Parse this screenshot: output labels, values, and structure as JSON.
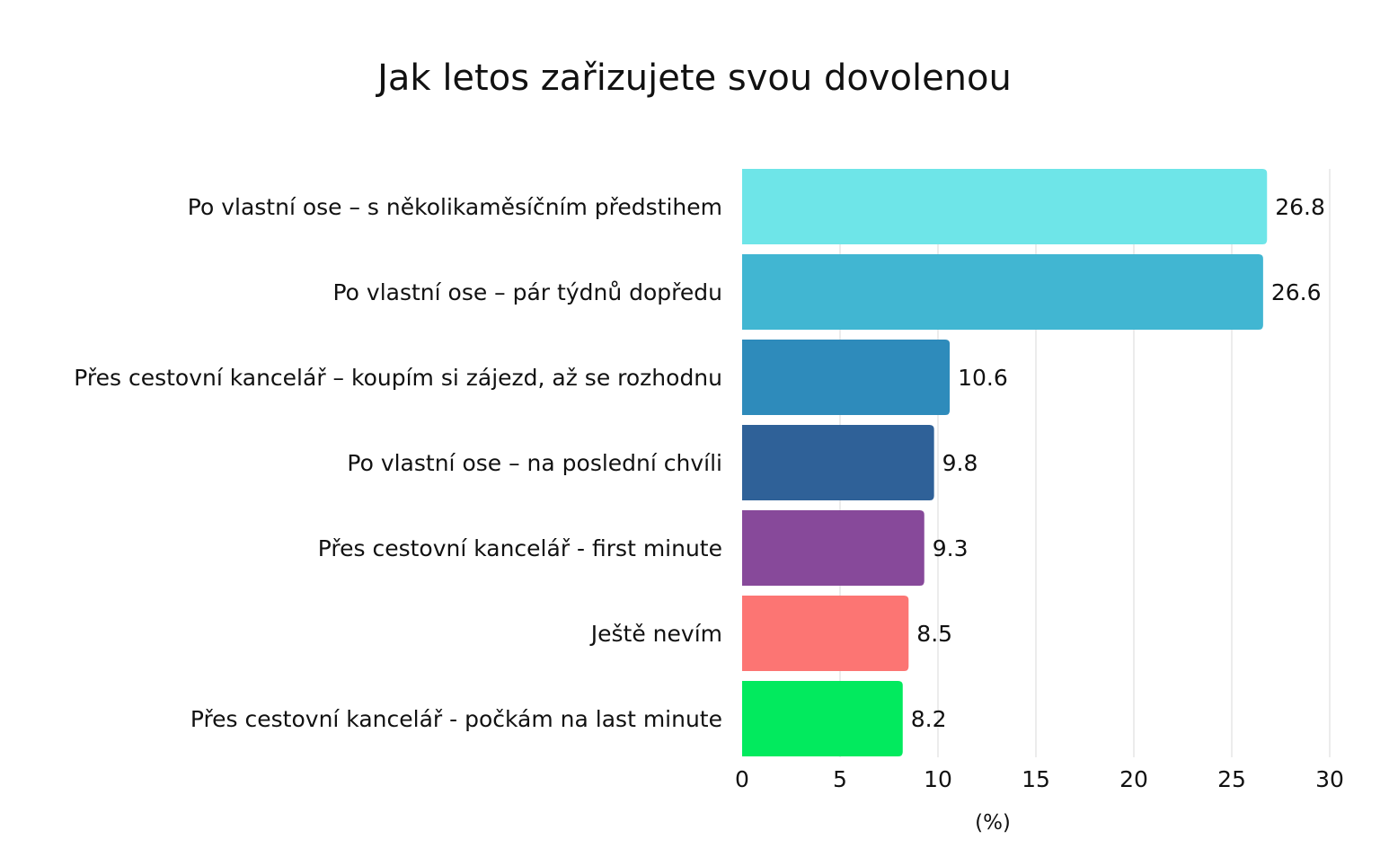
{
  "chart_data": {
    "type": "bar",
    "orientation": "horizontal",
    "title": "Jak letos zařizujete svou dovolenou",
    "xlabel": "(%)",
    "ylabel": "",
    "xlim": [
      0,
      30
    ],
    "xticks": [
      0,
      5,
      10,
      15,
      20,
      25,
      30
    ],
    "grid": "vertical",
    "legend": "none",
    "categories": [
      "Po vlastní ose – s několikaměsíčním předstihem",
      "Po vlastní ose – pár týdnů dopředu",
      "Přes cestovní kancelář – koupím si zájezd, až se rozhodnu",
      "Po vlastní ose – na poslední chvíli",
      "Přes cestovní kancelář - first minute",
      "Ještě nevím",
      "Přes cestovní kancelář - počkám na last minute"
    ],
    "values": [
      26.8,
      26.6,
      10.6,
      9.8,
      9.3,
      8.5,
      8.2
    ],
    "value_labels": [
      "26.8",
      "26.6",
      "10.6",
      "9.8",
      "9.3",
      "8.5",
      "8.2"
    ],
    "colors": [
      "#6ee5e8",
      "#41b6d2",
      "#2e8bbb",
      "#2f6198",
      "#87499a",
      "#fc7573",
      "#02ea5e"
    ]
  }
}
